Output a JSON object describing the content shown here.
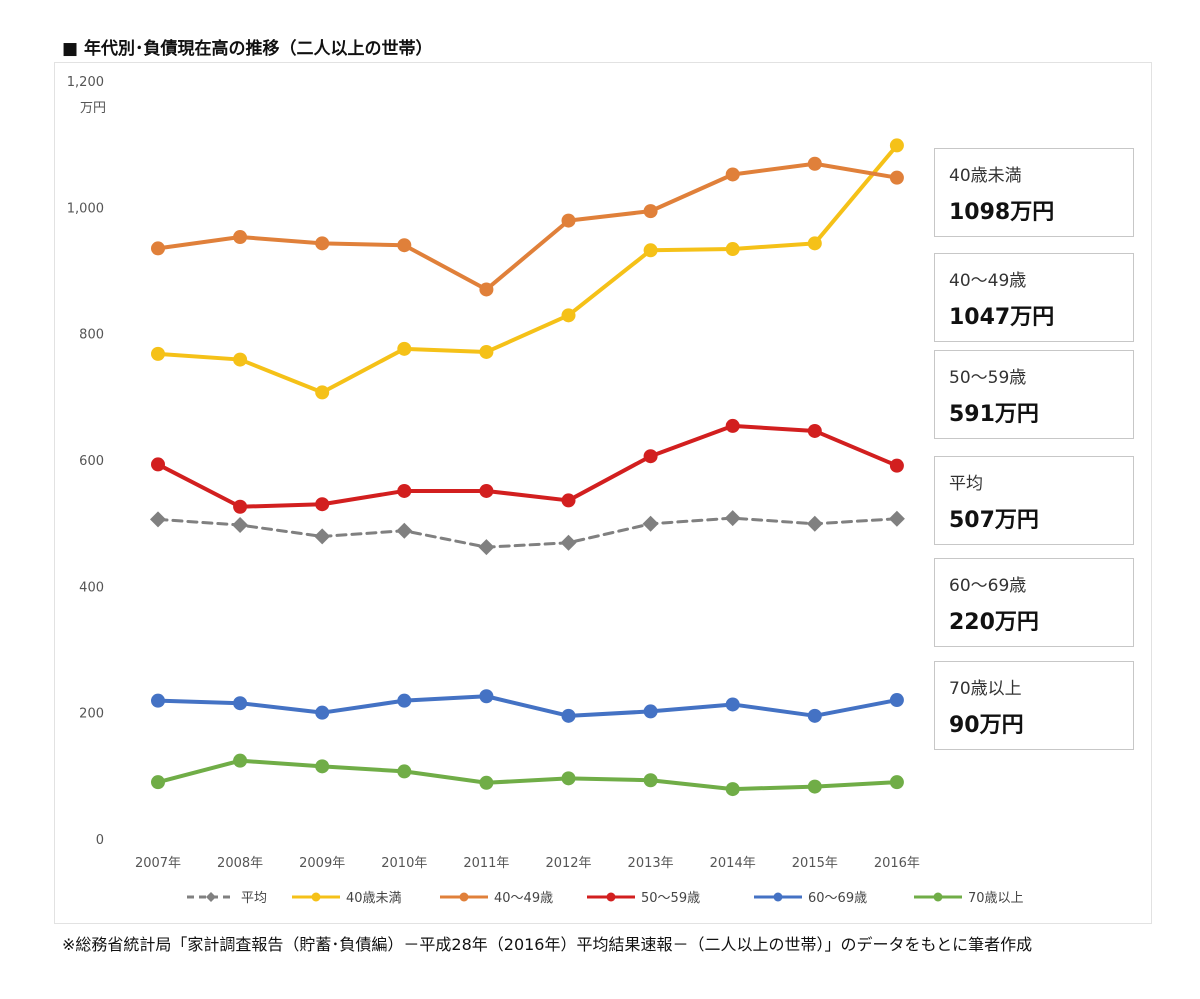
{
  "title": "■ 年代別･負債現在高の推移（二人以上の世帯）",
  "note": "※総務省統計局「家計調査報告（貯蓄･負債編）－平成28年（2016年）平均結果速報－（二人以上の世帯）」のデータをもとに筆者作成",
  "chart_data": {
    "type": "line",
    "title": "年代別･負債現在高の推移（二人以上の世帯）",
    "ylabel": "万円",
    "ylim": [
      0,
      1200
    ],
    "yticks": [
      "0",
      "200",
      "400",
      "600",
      "800",
      "1,000",
      "1,200"
    ],
    "categories": [
      "2007年",
      "2008年",
      "2009年",
      "2010年",
      "2011年",
      "2012年",
      "2013年",
      "2014年",
      "2015年",
      "2016年"
    ],
    "grid": false,
    "legend_position": "bottom",
    "series": [
      {
        "name": "平均",
        "color": "#808080",
        "dashed": true,
        "marker": "diamond",
        "values": [
          506,
          497,
          479,
          488,
          462,
          469,
          499,
          508,
          499,
          507
        ]
      },
      {
        "name": "40歳未満",
        "color": "#f5c118",
        "dashed": false,
        "marker": "circle",
        "values": [
          768,
          759,
          707,
          776,
          771,
          829,
          932,
          934,
          943,
          1098
        ]
      },
      {
        "name": "40～49歳",
        "color": "#e0803a",
        "dashed": false,
        "marker": "circle",
        "values": [
          935,
          953,
          943,
          940,
          870,
          979,
          994,
          1052,
          1069,
          1047
        ]
      },
      {
        "name": "50～59歳",
        "color": "#d21f1f",
        "dashed": false,
        "marker": "circle",
        "values": [
          593,
          526,
          530,
          551,
          551,
          536,
          606,
          654,
          646,
          591
        ]
      },
      {
        "name": "60～69歳",
        "color": "#4472c4",
        "dashed": false,
        "marker": "circle",
        "values": [
          219,
          215,
          200,
          219,
          226,
          195,
          202,
          213,
          195,
          220
        ]
      },
      {
        "name": "70歳以上",
        "color": "#70ad47",
        "dashed": false,
        "marker": "circle",
        "values": [
          90,
          124,
          115,
          107,
          89,
          96,
          93,
          79,
          83,
          90
        ]
      }
    ],
    "callouts": [
      {
        "label": "40歳未満",
        "value": "1098万円"
      },
      {
        "label": "40～49歳",
        "value": "1047万円"
      },
      {
        "label": "50～59歳",
        "value": "591万円"
      },
      {
        "label": "平均",
        "value": "507万円"
      },
      {
        "label": "60～69歳",
        "value": "220万円"
      },
      {
        "label": "70歳以上",
        "value": "90万円"
      }
    ]
  }
}
